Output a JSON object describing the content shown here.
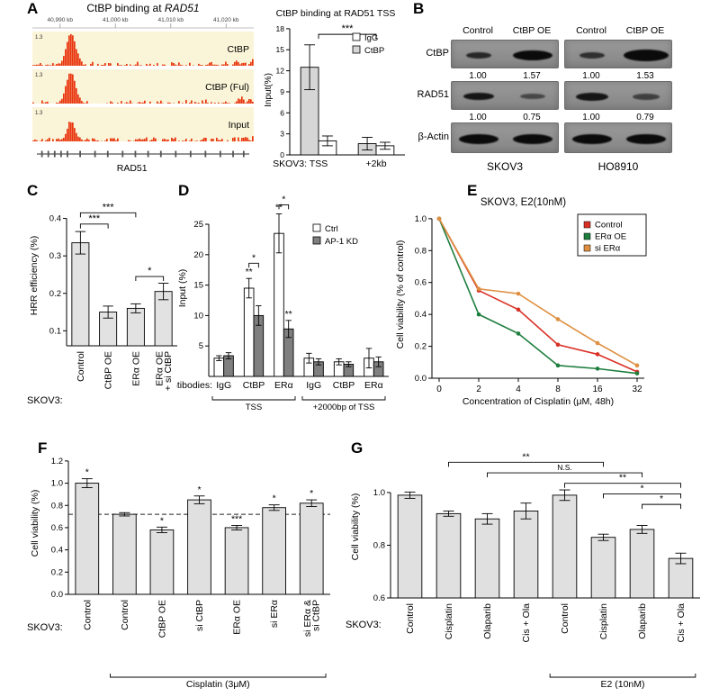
{
  "panels": {
    "A": {
      "label": "A",
      "browser": {
        "title_prefix": "CtBP binding at ",
        "title_gene": "RAD51",
        "ruler_labels": [
          "40,990 kb",
          "41,000 kb",
          "41,010 kb",
          "41,020 kb"
        ],
        "tracks": [
          {
            "name": "CtBP",
            "scale": "1.3"
          },
          {
            "name": "CtBP (Ful)",
            "scale": "1.3"
          },
          {
            "name": "Input",
            "scale": "1.3"
          }
        ],
        "gene": "RAD51",
        "track_bg": "#faf5d8",
        "signal_color": "#e8350e"
      }
    },
    "B": {
      "label": "B",
      "lane_headers": [
        "Control",
        "CtBP OE",
        "Control",
        "CtBP OE"
      ],
      "rows": [
        {
          "protein": "CtBP",
          "quantification": [
            "1.00",
            "1.57",
            "1.00",
            "1.53"
          ]
        },
        {
          "protein": "RAD51",
          "quantification": [
            "1.00",
            "0.75",
            "1.00",
            "0.79"
          ]
        },
        {
          "protein": "β-Actin",
          "quantification": []
        }
      ],
      "cell_lines": [
        "SKOV3",
        "HO8910"
      ]
    },
    "C": {
      "label": "C"
    },
    "D": {
      "label": "D"
    },
    "E": {
      "label": "E"
    },
    "F": {
      "label": "F"
    },
    "G": {
      "label": "G"
    }
  },
  "chart_data": [
    {
      "id": "A_tss",
      "type": "bar",
      "title": "CtBP binding at RAD51 TSS",
      "ylabel": "Input(%)",
      "ylim": [
        0,
        18.5
      ],
      "yticks": [
        0,
        3,
        6,
        9,
        12,
        15,
        18
      ],
      "groups": [
        "TSS",
        "+2kb"
      ],
      "x_prefix": "SKOV3:",
      "series": [
        {
          "name": "CtBP",
          "color": "#d6d6d6",
          "values": [
            12.5,
            1.6
          ],
          "errors": [
            3.2,
            0.9
          ]
        },
        {
          "name": "IgG",
          "color": "#ffffff",
          "values": [
            2.0,
            1.3
          ],
          "errors": [
            0.7,
            0.5
          ]
        }
      ],
      "legend": [
        {
          "label": "IgG",
          "color": "#ffffff"
        },
        {
          "label": "CtBP",
          "color": "#d6d6d6"
        }
      ],
      "brackets": [
        {
          "x1": 0,
          "x2": 1,
          "y": 17.2,
          "text": "***"
        }
      ]
    },
    {
      "id": "C",
      "type": "bar",
      "ylabel": "HRR efficiency (%)",
      "ylim": [
        0.06,
        0.435
      ],
      "yticks": [
        0.1,
        0.2,
        0.3,
        0.4
      ],
      "ytick_dec": 1,
      "bar_color": "#e2e2e2",
      "categories": [
        "Control",
        "CtBP OE",
        "ERα OE",
        "ERα OE\n+ si CtBP"
      ],
      "values": [
        0.335,
        0.15,
        0.16,
        0.205
      ],
      "errors": [
        0.03,
        0.016,
        0.012,
        0.022
      ],
      "x_prefix": "SKOV3:",
      "brackets": [
        {
          "x1": 0,
          "x2": 2,
          "y": 0.415,
          "text": "***"
        },
        {
          "x1": 0,
          "x2": 1,
          "y": 0.385,
          "text": "***"
        },
        {
          "x1": 2,
          "x2": 3,
          "y": 0.245,
          "text": "*"
        }
      ]
    },
    {
      "id": "D",
      "type": "bar",
      "ylabel": "Input (%)",
      "ylim": [
        0,
        29
      ],
      "yticks": [
        5,
        10,
        15,
        20,
        25
      ],
      "categories": [
        "IgG",
        "CtBP",
        "ERα",
        "IgG",
        "CtBP",
        "ERα"
      ],
      "x_prefix": "Antibodies:",
      "series": [
        {
          "name": "Ctrl",
          "color": "#ffffff",
          "values": [
            3.0,
            14.5,
            23.5,
            3.0,
            2.4,
            3.0
          ],
          "errors": [
            0.4,
            1.6,
            3.2,
            0.8,
            0.5,
            1.6
          ]
        },
        {
          "name": "AP-1 KD",
          "color": "#7f7f7f",
          "values": [
            3.4,
            10.0,
            7.8,
            2.4,
            2.0,
            2.4
          ],
          "errors": [
            0.5,
            1.6,
            1.4,
            0.5,
            0.4,
            0.8
          ]
        }
      ],
      "legend": [
        {
          "label": "Ctrl",
          "color": "#ffffff"
        },
        {
          "label": "AP-1 KD",
          "color": "#7f7f7f"
        }
      ],
      "bar_stars": [
        {
          "cat": 1,
          "series": 0,
          "text": "**"
        },
        {
          "cat": 2,
          "series": 0,
          "text": "**"
        },
        {
          "cat": 2,
          "series": 1,
          "text": "**"
        }
      ],
      "brackets": [
        {
          "pair_cat": 1,
          "y": 18.6,
          "text": "*"
        },
        {
          "pair_cat": 2,
          "y": 28.2,
          "text": "*"
        }
      ],
      "under_brackets": [
        {
          "from": 0,
          "to": 2,
          "label": "TSS"
        },
        {
          "from": 3,
          "to": 5,
          "label": "+2000bp of TSS"
        }
      ]
    },
    {
      "id": "E",
      "type": "line",
      "title": "SKOV3, E2(10nM)",
      "ylabel": "Cell viability (% of control)",
      "xlabel": "Concentration of Cisplatin (μM, 48h)",
      "x_ticklabels": [
        "0",
        "2",
        "4",
        "8",
        "16",
        "32"
      ],
      "ylim": [
        0,
        1.05
      ],
      "yticks": [
        0,
        0.2,
        0.4,
        0.6,
        0.8,
        1.0
      ],
      "ytick_dec": 1,
      "series": [
        {
          "name": "Control",
          "color": "#d93025",
          "values": [
            1.0,
            0.55,
            0.43,
            0.21,
            0.15,
            0.04
          ]
        },
        {
          "name": "ERα OE",
          "color": "#1e7e3e",
          "values": [
            1.0,
            0.4,
            0.28,
            0.08,
            0.06,
            0.03
          ]
        },
        {
          "name": "si ERα",
          "color": "#de8f41",
          "values": [
            1.0,
            0.56,
            0.53,
            0.37,
            0.22,
            0.08
          ]
        }
      ]
    },
    {
      "id": "F",
      "type": "bar",
      "ylabel": "Cell viability (%)",
      "ylim": [
        0,
        1.28
      ],
      "yticks": [
        0,
        0.2,
        0.4,
        0.6,
        0.8,
        1.0,
        1.2
      ],
      "ytick_dec": 1,
      "bar_color": "#e0e0e0",
      "categories": [
        "Control",
        "Control",
        "CtBP OE",
        "si CtBP",
        "ERα OE",
        "si ERα",
        "si ERα &\nsi CtBP"
      ],
      "values": [
        1.0,
        0.72,
        0.58,
        0.85,
        0.6,
        0.78,
        0.82
      ],
      "errors": [
        0.04,
        0.015,
        0.025,
        0.035,
        0.02,
        0.025,
        0.03
      ],
      "stars": [
        "*",
        "",
        "*",
        "*",
        "***",
        "*",
        "*"
      ],
      "dashed_line": 0.72,
      "x_prefix": "SKOV3:",
      "under_brackets": [
        {
          "from": 1,
          "to": 6,
          "label": "Cisplatin (3μM)"
        }
      ]
    },
    {
      "id": "G",
      "type": "bar",
      "ylabel": "Cell viability (%)",
      "ylim": [
        0.6,
        1.14
      ],
      "yticks": [
        0.6,
        0.8,
        1.0
      ],
      "ytick_dec": 1,
      "bar_color": "#e0e0e0",
      "categories": [
        "Control",
        "Cisplatin",
        "Olaparib",
        "Cis + Ola",
        "Control",
        "Cisplatin",
        "Olaparib",
        "Cis + Ola"
      ],
      "values": [
        0.99,
        0.92,
        0.9,
        0.93,
        0.99,
        0.83,
        0.86,
        0.75
      ],
      "errors": [
        0.012,
        0.01,
        0.02,
        0.03,
        0.02,
        0.012,
        0.015,
        0.02
      ],
      "x_prefix": "SKOV3:",
      "brackets": [
        {
          "x1": 1,
          "x2": 5,
          "y": 1.115,
          "text": "**"
        },
        {
          "x1": 2,
          "x2": 6,
          "y": 1.075,
          "text": "N.S."
        },
        {
          "x1": 4,
          "x2": 7,
          "y": 1.035,
          "text": "**"
        },
        {
          "x1": 5,
          "x2": 7,
          "y": 0.995,
          "text": "*"
        },
        {
          "x1": 6,
          "x2": 7,
          "y": 0.955,
          "text": "*"
        }
      ],
      "under_brackets": [
        {
          "from": 4,
          "to": 7,
          "label": "E2 (10nM)"
        }
      ]
    }
  ]
}
